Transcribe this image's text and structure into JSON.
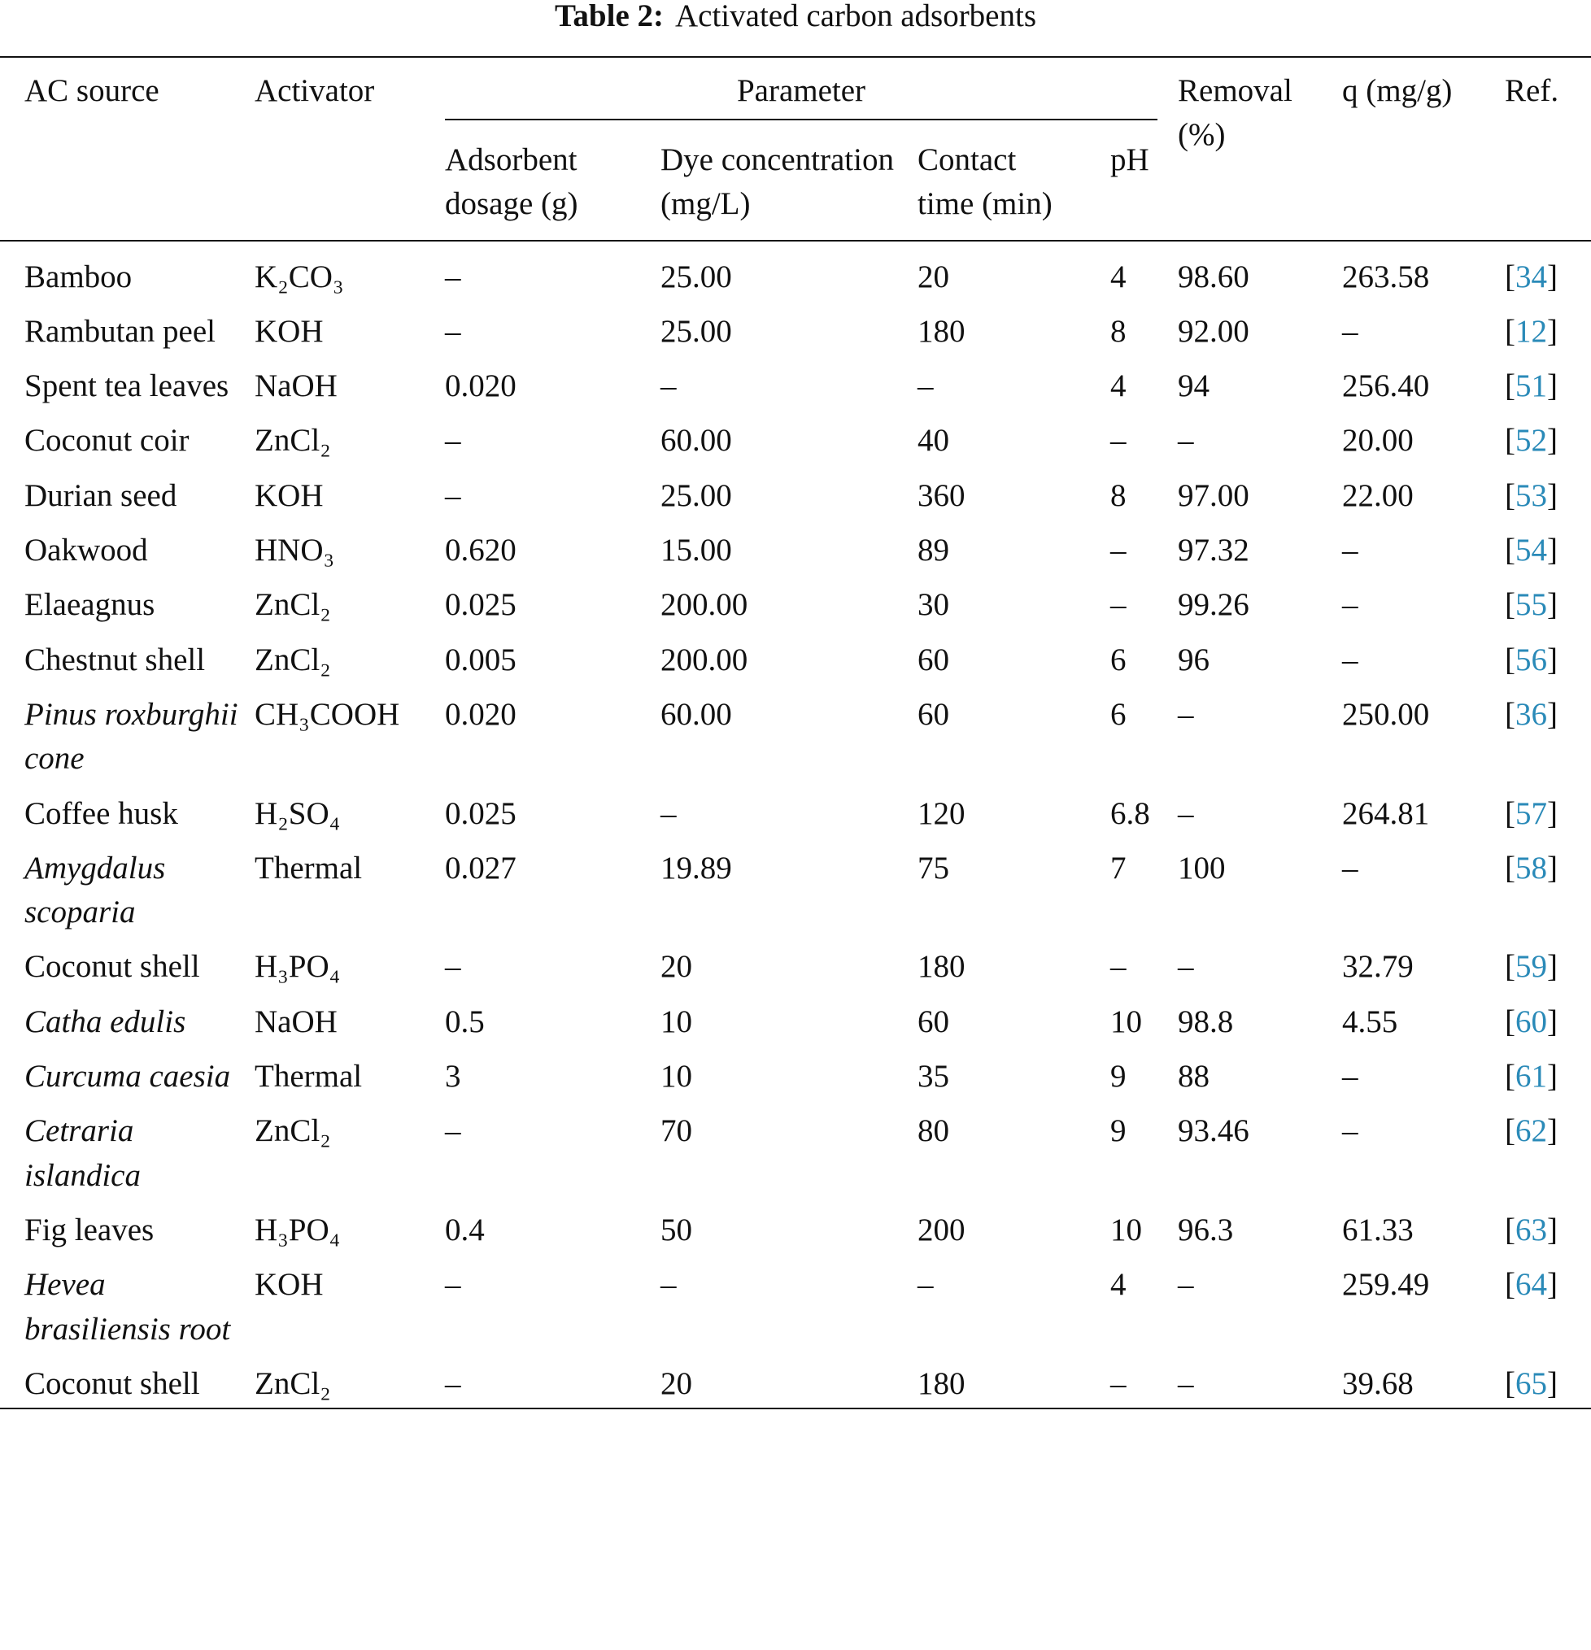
{
  "title": {
    "label": "Table 2:",
    "text": "Activated carbon adsorbents"
  },
  "table": {
    "header": {
      "ac_source": "AC source",
      "activator": "Activator",
      "parameter": "Parameter",
      "adsorbent_dosage": "Adsorbent dosage (g)",
      "dye_concentration": "Dye concentration (mg/L)",
      "contact_time": "Contact time (min)",
      "ph": "pH",
      "removal": "Removal (%)",
      "q": "q (mg/g)",
      "ref": "Ref."
    },
    "rows": [
      [
        "Bamboo",
        "K₂CO₃",
        "–",
        "25.00",
        "20",
        "4",
        "98.60",
        "263.58",
        "[34]"
      ],
      [
        "Rambutan peel",
        "KOH",
        "–",
        "25.00",
        "180",
        "8",
        "92.00",
        "–",
        "[12]"
      ],
      [
        "Spent tea leaves",
        "NaOH",
        "0.020",
        "–",
        "–",
        "4",
        "94",
        "256.40",
        "[51]"
      ],
      [
        "Coconut coir",
        "ZnCl₂",
        "–",
        "60.00",
        "40",
        "–",
        "–",
        "20.00",
        "[52]"
      ],
      [
        "Durian seed",
        "KOH",
        "–",
        "25.00",
        "360",
        "8",
        "97.00",
        "22.00",
        "[53]"
      ],
      [
        "Oakwood",
        "HNO₃",
        "0.620",
        "15.00",
        "89",
        "–",
        "97.32",
        "–",
        "[54]"
      ],
      [
        "Elaeagnus",
        "ZnCl₂",
        "0.025",
        "200.00",
        "30",
        "–",
        "99.26",
        "–",
        "[55]"
      ],
      [
        "Chestnut shell",
        "ZnCl₂",
        "0.005",
        "200.00",
        "60",
        "6",
        "96",
        "–",
        "[56]"
      ],
      [
        "Pinus roxburghii cone",
        "CH₃COOH",
        "0.020",
        "60.00",
        "60",
        "6",
        "–",
        "250.00",
        "[36]"
      ],
      [
        "Coffee husk",
        "H₂SO₄",
        "0.025",
        "–",
        "120",
        "6.8",
        "–",
        "264.81",
        "[57]"
      ],
      [
        "Amygdalus scoparia",
        "Thermal",
        "0.027",
        "19.89",
        "75",
        "7",
        "100",
        "–",
        "[58]"
      ],
      [
        "Coconut shell",
        "H₃PO₄",
        "–",
        "20",
        "180",
        "–",
        "–",
        "32.79",
        "[59]"
      ],
      [
        "Catha edulis",
        "NaOH",
        "0.5",
        "10",
        "60",
        "10",
        "98.8",
        "4.55",
        "[60]"
      ],
      [
        "Curcuma caesia",
        "Thermal",
        "3",
        "10",
        "35",
        "9",
        "88",
        "–",
        "[61]"
      ],
      [
        "Cetraria islandica",
        "ZnCl₂",
        "–",
        "70",
        "80",
        "9",
        "93.46",
        "–",
        "[62]"
      ],
      [
        "Fig leaves",
        "H₃PO₄",
        "0.4",
        "50",
        "200",
        "10",
        "96.3",
        "61.33",
        "[63]"
      ],
      [
        "Hevea brasiliensis root",
        "KOH",
        "–",
        "–",
        "–",
        "4",
        "–",
        "259.49",
        "[64]"
      ],
      [
        "Coconut shell",
        "ZnCl₂",
        "–",
        "20",
        "180",
        "–",
        "–",
        "39.68",
        "[65]"
      ]
    ],
    "italic_rows": [
      8,
      10,
      12,
      13,
      14,
      16
    ],
    "ref_color": "#2a8ab8"
  }
}
